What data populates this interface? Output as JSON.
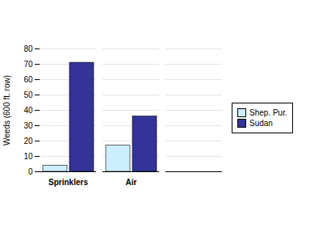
{
  "chart_data": {
    "type": "bar",
    "categories": [
      "Sprinklers",
      "Air",
      null
    ],
    "series": [
      {
        "name": "Shep. Pur.",
        "color": "#cceeff",
        "values": [
          4,
          17,
          null
        ]
      },
      {
        "name": "Sudan",
        "color": "#333399",
        "values": [
          71,
          36,
          null
        ]
      }
    ],
    "y_label": "Weeds (600 ft. row)",
    "ylim": [
      0,
      80
    ],
    "yticks": [
      0,
      10,
      20,
      30,
      40,
      50,
      60,
      70,
      80
    ],
    "grid": true,
    "legend": "right"
  }
}
